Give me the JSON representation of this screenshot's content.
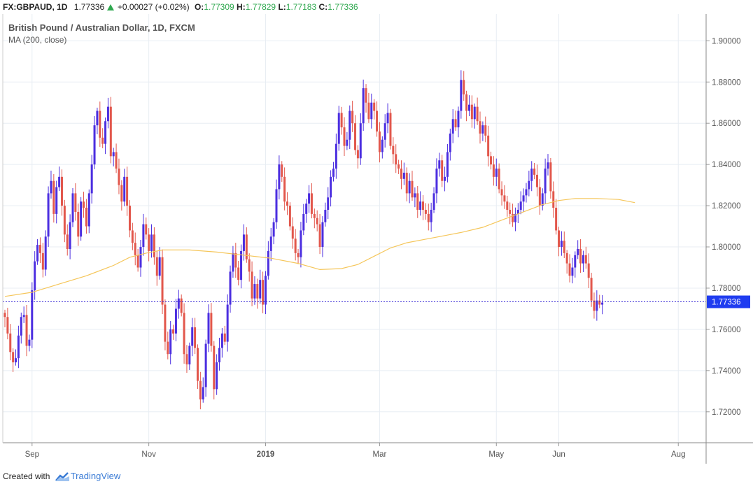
{
  "header": {
    "symbol": "FX:GBPAUD, 1D",
    "last": "1.77336",
    "change": "+0.00027 (+0.02%)",
    "open_label": "O:",
    "open": "1.77309",
    "high_label": "H:",
    "high": "1.77829",
    "low_label": "L:",
    "low": "1.77183",
    "close_label": "C:",
    "close": "1.77336"
  },
  "legend": {
    "title": "British Pound / Australian Dollar, 1D, FXCM",
    "indicator": "MA (200, close)"
  },
  "footer": {
    "created_with": "Created with",
    "brand": "TradingView"
  },
  "colors": {
    "up": "#4b2ee0",
    "down": "#e2574c",
    "ma": "#f5c65a",
    "price_line": "#3b2bd6",
    "price_badge": "#1f3cf0",
    "grid": "#e8edf3",
    "axis": "#555555"
  },
  "chart_data": {
    "type": "candlestick",
    "title": "British Pound / Australian Dollar, 1D, FXCM",
    "indicator": "MA (200, close)",
    "ylim": [
      1.705,
      1.913
    ],
    "y_ticks": [
      "1.90000",
      "1.88000",
      "1.86000",
      "1.84000",
      "1.82000",
      "1.80000",
      "1.78000",
      "1.76000",
      "1.74000",
      "1.72000"
    ],
    "x_ticks": [
      {
        "label": "Sep",
        "bar": 10
      },
      {
        "label": "Nov",
        "bar": 53
      },
      {
        "label": "2019",
        "bar": 96
      },
      {
        "label": "Mar",
        "bar": 138
      },
      {
        "label": "May",
        "bar": 181
      },
      {
        "label": "Jun",
        "bar": 204
      },
      {
        "label": "Aug",
        "bar": 248
      }
    ],
    "current_price": 1.77336,
    "current_price_label": "1.77336",
    "closes": [
      1.766,
      1.758,
      1.749,
      1.744,
      1.746,
      1.757,
      1.766,
      1.767,
      1.752,
      1.755,
      1.779,
      1.793,
      1.801,
      1.797,
      1.789,
      1.805,
      1.826,
      1.832,
      1.816,
      1.829,
      1.834,
      1.82,
      1.806,
      1.799,
      1.812,
      1.826,
      1.817,
      1.805,
      1.822,
      1.819,
      1.81,
      1.826,
      1.84,
      1.859,
      1.866,
      1.853,
      1.85,
      1.861,
      1.868,
      1.844,
      1.846,
      1.838,
      1.83,
      1.822,
      1.834,
      1.82,
      1.808,
      1.802,
      1.796,
      1.79,
      1.8,
      1.811,
      1.806,
      1.798,
      1.806,
      1.795,
      1.786,
      1.795,
      1.772,
      1.754,
      1.748,
      1.76,
      1.758,
      1.77,
      1.775,
      1.768,
      1.748,
      1.743,
      1.752,
      1.761,
      1.751,
      1.735,
      1.726,
      1.732,
      1.753,
      1.768,
      1.752,
      1.731,
      1.744,
      1.751,
      1.758,
      1.754,
      1.772,
      1.788,
      1.797,
      1.79,
      1.784,
      1.798,
      1.806,
      1.794,
      1.788,
      1.775,
      1.782,
      1.775,
      1.784,
      1.772,
      1.786,
      1.798,
      1.805,
      1.812,
      1.828,
      1.84,
      1.834,
      1.822,
      1.82,
      1.81,
      1.804,
      1.797,
      1.795,
      1.808,
      1.816,
      1.821,
      1.826,
      1.816,
      1.814,
      1.811,
      1.8,
      1.812,
      1.818,
      1.824,
      1.834,
      1.838,
      1.85,
      1.865,
      1.858,
      1.849,
      1.852,
      1.866,
      1.86,
      1.847,
      1.843,
      1.86,
      1.877,
      1.87,
      1.862,
      1.87,
      1.866,
      1.856,
      1.846,
      1.852,
      1.86,
      1.865,
      1.849,
      1.845,
      1.84,
      1.838,
      1.833,
      1.836,
      1.826,
      1.832,
      1.824,
      1.826,
      1.818,
      1.822,
      1.818,
      1.816,
      1.812,
      1.818,
      1.826,
      1.838,
      1.842,
      1.832,
      1.834,
      1.846,
      1.855,
      1.862,
      1.858,
      1.866,
      1.881,
      1.874,
      1.866,
      1.869,
      1.862,
      1.868,
      1.861,
      1.855,
      1.859,
      1.854,
      1.844,
      1.84,
      1.834,
      1.838,
      1.828,
      1.825,
      1.822,
      1.818,
      1.816,
      1.812,
      1.816,
      1.818,
      1.822,
      1.825,
      1.828,
      1.832,
      1.838,
      1.835,
      1.829,
      1.82,
      1.826,
      1.838,
      1.841,
      1.827,
      1.819,
      1.808,
      1.8,
      1.803,
      1.797,
      1.792,
      1.786,
      1.79,
      1.796,
      1.799,
      1.792,
      1.796,
      1.792,
      1.785,
      1.774,
      1.769,
      1.774,
      1.772,
      1.773
    ],
    "ma_200": [
      [
        0,
        1.776
      ],
      [
        10,
        1.778
      ],
      [
        20,
        1.782
      ],
      [
        30,
        1.786
      ],
      [
        40,
        1.791
      ],
      [
        46,
        1.795
      ],
      [
        52,
        1.797
      ],
      [
        58,
        1.7985
      ],
      [
        68,
        1.7985
      ],
      [
        78,
        1.7975
      ],
      [
        88,
        1.796
      ],
      [
        98,
        1.7945
      ],
      [
        108,
        1.792
      ],
      [
        116,
        1.789
      ],
      [
        124,
        1.7895
      ],
      [
        130,
        1.7915
      ],
      [
        136,
        1.7955
      ],
      [
        142,
        1.7995
      ],
      [
        148,
        1.802
      ],
      [
        154,
        1.8035
      ],
      [
        160,
        1.805
      ],
      [
        168,
        1.807
      ],
      [
        176,
        1.8095
      ],
      [
        184,
        1.8135
      ],
      [
        192,
        1.8175
      ],
      [
        198,
        1.8205
      ],
      [
        204,
        1.8225
      ],
      [
        210,
        1.8235
      ],
      [
        218,
        1.8235
      ],
      [
        226,
        1.823
      ],
      [
        232,
        1.8215
      ]
    ]
  }
}
